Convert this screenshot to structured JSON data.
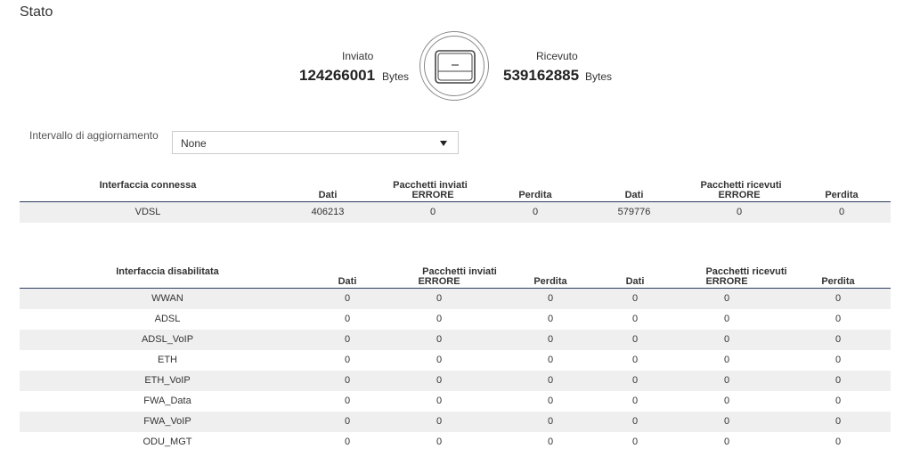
{
  "page": {
    "title": "Stato"
  },
  "traffic": {
    "sent": {
      "label": "Inviato",
      "value": "124266001",
      "unit": "Bytes"
    },
    "received": {
      "label": "Ricevuto",
      "value": "539162885",
      "unit": "Bytes"
    },
    "icon": "router-icon"
  },
  "refresh": {
    "label": "Intervallo di aggiornamento",
    "selected": "None"
  },
  "headers": {
    "dati": "Dati",
    "sent_group": "Pacchetti inviati",
    "received_group": "Pacchetti ricevuti",
    "errore": "ERRORE",
    "perdita": "Perdita"
  },
  "connected": {
    "title": "Interfaccia connessa",
    "rows": [
      {
        "name": "VDSL",
        "tx_data": "406213",
        "tx_error": "0",
        "tx_loss": "0",
        "rx_data": "579776",
        "rx_error": "0",
        "rx_loss": "0"
      }
    ]
  },
  "disabled": {
    "title": "Interfaccia disabilitata",
    "rows": [
      {
        "name": "WWAN",
        "tx_data": "0",
        "tx_error": "0",
        "tx_loss": "0",
        "rx_data": "0",
        "rx_error": "0",
        "rx_loss": "0"
      },
      {
        "name": "ADSL",
        "tx_data": "0",
        "tx_error": "0",
        "tx_loss": "0",
        "rx_data": "0",
        "rx_error": "0",
        "rx_loss": "0"
      },
      {
        "name": "ADSL_VoIP",
        "tx_data": "0",
        "tx_error": "0",
        "tx_loss": "0",
        "rx_data": "0",
        "rx_error": "0",
        "rx_loss": "0"
      },
      {
        "name": "ETH",
        "tx_data": "0",
        "tx_error": "0",
        "tx_loss": "0",
        "rx_data": "0",
        "rx_error": "0",
        "rx_loss": "0"
      },
      {
        "name": "ETH_VoIP",
        "tx_data": "0",
        "tx_error": "0",
        "tx_loss": "0",
        "rx_data": "0",
        "rx_error": "0",
        "rx_loss": "0"
      },
      {
        "name": "FWA_Data",
        "tx_data": "0",
        "tx_error": "0",
        "tx_loss": "0",
        "rx_data": "0",
        "rx_error": "0",
        "rx_loss": "0"
      },
      {
        "name": "FWA_VoIP",
        "tx_data": "0",
        "tx_error": "0",
        "tx_loss": "0",
        "rx_data": "0",
        "rx_error": "0",
        "rx_loss": "0"
      },
      {
        "name": "ODU_MGT",
        "tx_data": "0",
        "tx_error": "0",
        "tx_loss": "0",
        "rx_data": "0",
        "rx_error": "0",
        "rx_loss": "0"
      }
    ]
  }
}
